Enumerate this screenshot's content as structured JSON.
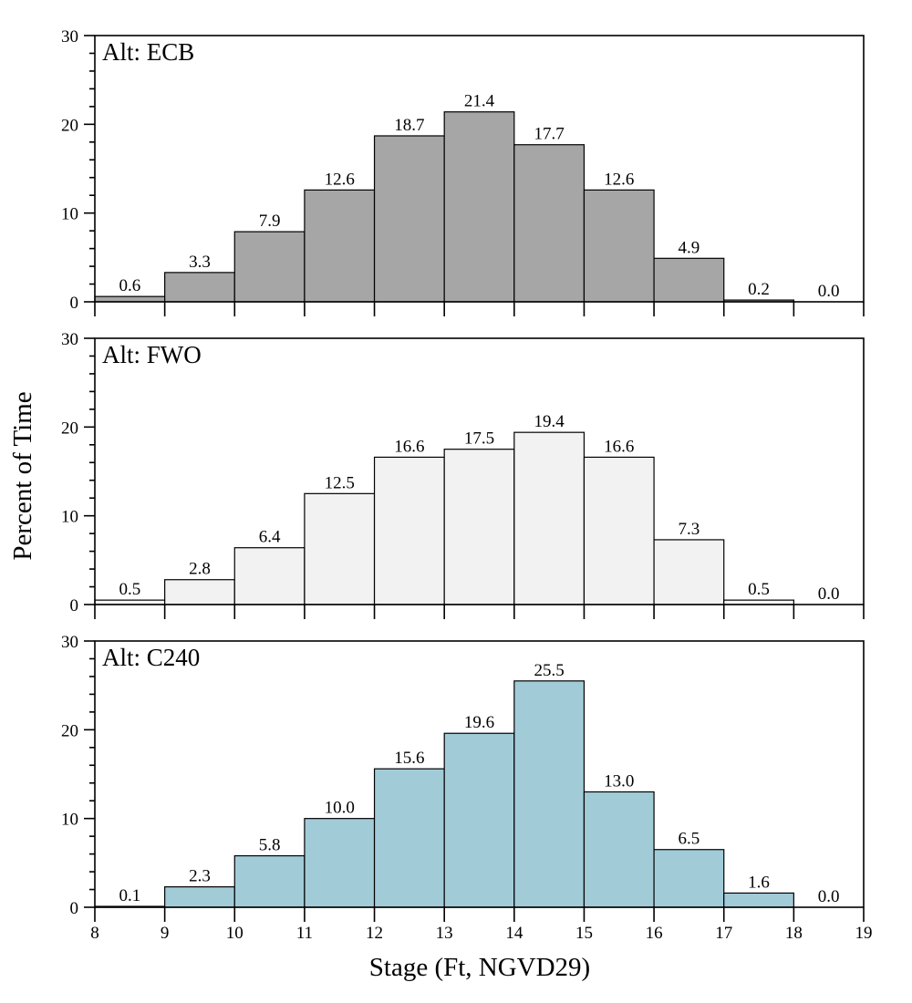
{
  "chart_data": {
    "type": "bar",
    "ylabel": "Percent of Time",
    "xlabel": "Stage (Ft, NGVD29)",
    "x_ticks": [
      8,
      9,
      10,
      11,
      12,
      13,
      14,
      15,
      16,
      17,
      18,
      19
    ],
    "xlim": [
      8,
      19
    ],
    "ylim": [
      0,
      30
    ],
    "y_ticks": [
      0,
      10,
      20,
      30
    ],
    "bin_edges": [
      8,
      9,
      10,
      11,
      12,
      13,
      14,
      15,
      16,
      17,
      18,
      19
    ],
    "series": [
      {
        "name": "Alt:  ECB",
        "color": "#a6a6a6",
        "values": [
          0.6,
          3.3,
          7.9,
          12.6,
          18.7,
          21.4,
          17.7,
          12.6,
          4.9,
          0.2,
          0.0
        ],
        "labels": [
          "0.6",
          "3.3",
          "7.9",
          "12.6",
          "18.7",
          "21.4",
          "17.7",
          "12.6",
          "4.9",
          "0.2",
          "0.0"
        ]
      },
      {
        "name": "Alt:  FWO",
        "color": "#f2f2f2",
        "values": [
          0.5,
          2.8,
          6.4,
          12.5,
          16.6,
          17.5,
          19.4,
          16.6,
          7.3,
          0.5,
          0.0
        ],
        "labels": [
          "0.5",
          "2.8",
          "6.4",
          "12.5",
          "16.6",
          "17.5",
          "19.4",
          "16.6",
          "7.3",
          "0.5",
          "0.0"
        ]
      },
      {
        "name": "Alt:  C240",
        "color": "#a2cbd8",
        "values": [
          0.1,
          2.3,
          5.8,
          10.0,
          15.6,
          19.6,
          25.5,
          13.0,
          6.5,
          1.6,
          0.0
        ],
        "labels": [
          "0.1",
          "2.3",
          "5.8",
          "10.0",
          "15.6",
          "19.6",
          "25.5",
          "13.0",
          "6.5",
          "1.6",
          "0.0"
        ]
      }
    ]
  }
}
